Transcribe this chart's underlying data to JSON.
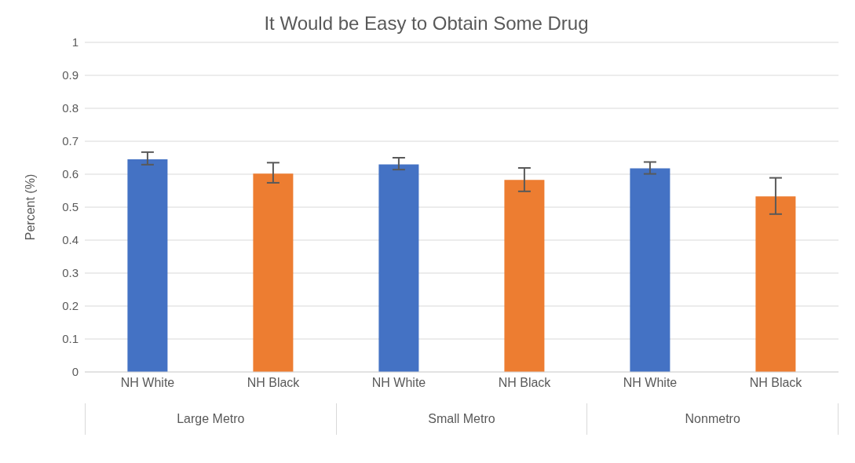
{
  "chart_data": {
    "type": "bar",
    "title": "It Would be Easy to Obtain Some Drug",
    "ylabel": "Percent (%)",
    "categories": [
      "NH White",
      "NH Black",
      "NH White",
      "NH Black",
      "NH White",
      "NH Black"
    ],
    "values": [
      0.645,
      0.602,
      0.63,
      0.583,
      0.618,
      0.533
    ],
    "colors": [
      "#4472c4",
      "#ed7d31",
      "#4472c4",
      "#ed7d31",
      "#4472c4",
      "#ed7d31"
    ],
    "errors": [
      [
        0.629,
        0.667
      ],
      [
        0.574,
        0.635
      ],
      [
        0.614,
        0.65
      ],
      [
        0.548,
        0.619
      ],
      [
        0.601,
        0.637
      ],
      [
        0.479,
        0.589
      ]
    ],
    "annotations": [
      "Large Metro",
      "Small Metro",
      "Nonmetro"
    ],
    "ylim": [
      0,
      1
    ],
    "yticks": [
      0,
      0.1,
      0.2,
      0.3,
      0.4,
      0.5,
      0.6,
      0.7,
      0.8,
      0.9,
      1
    ],
    "grid": "y"
  }
}
